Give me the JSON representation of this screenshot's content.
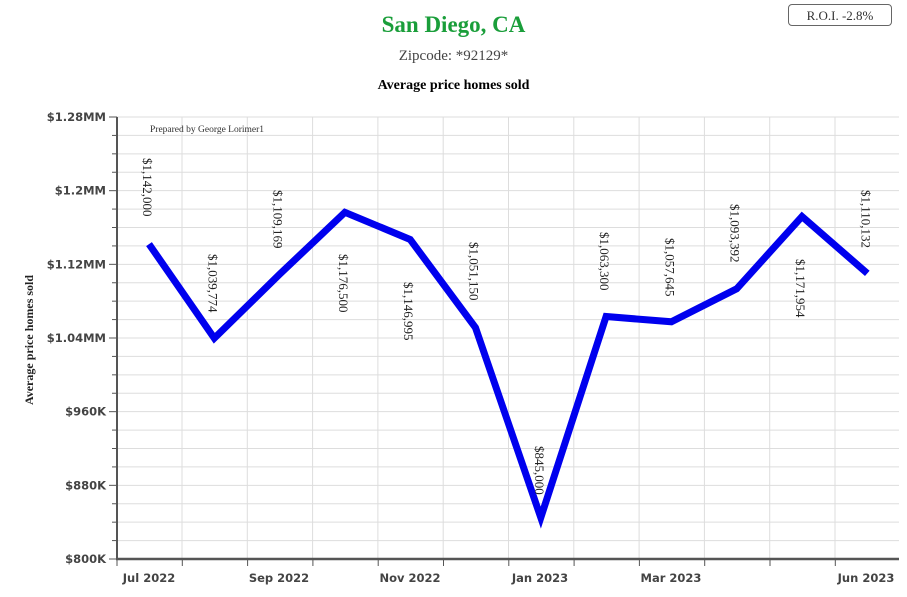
{
  "header": {
    "title": "San Diego, CA",
    "subtitle": "Zipcode: *92129*",
    "chart_title": "Average price homes sold",
    "roi_label": "R.O.I. -2.8%"
  },
  "colors": {
    "title": "#1a9e3a",
    "line": "#0000ee",
    "grid": "#dddddd",
    "axis": "#555555"
  },
  "chart_data": {
    "type": "line",
    "title": "Average price homes sold",
    "ylabel": "Average price homes sold",
    "xlabel": "",
    "annotation": "Prepared by George Lorimer1",
    "ylim": [
      800000,
      1280000
    ],
    "yticks": [
      800000,
      880000,
      960000,
      1040000,
      1120000,
      1200000,
      1280000
    ],
    "ytick_labels": [
      "$800K",
      "$880K",
      "$960K",
      "$1.04MM",
      "$1.12MM",
      "$1.2MM",
      "$1.28MM"
    ],
    "x_labels": [
      "Jul 2022",
      "Sep 2022",
      "Nov 2022",
      "Jan 2023",
      "Mar 2023",
      "Jun 2023"
    ],
    "grid": true,
    "series": [
      {
        "values": [
          1142000,
          1039774,
          1109169,
          1176500,
          1146995,
          1051150,
          845000,
          1063300,
          1057645,
          1093392,
          1171954,
          1110132
        ],
        "labels": [
          "$1,142,000",
          "$1,039,774",
          "$1,109,169",
          "$1,176,500",
          "$1,146,995",
          "$1,051,150",
          "$845,000",
          "$1,063,300",
          "$1,057,645",
          "$1,093,392",
          "$1,171,954",
          "$1,110,132"
        ]
      }
    ]
  }
}
